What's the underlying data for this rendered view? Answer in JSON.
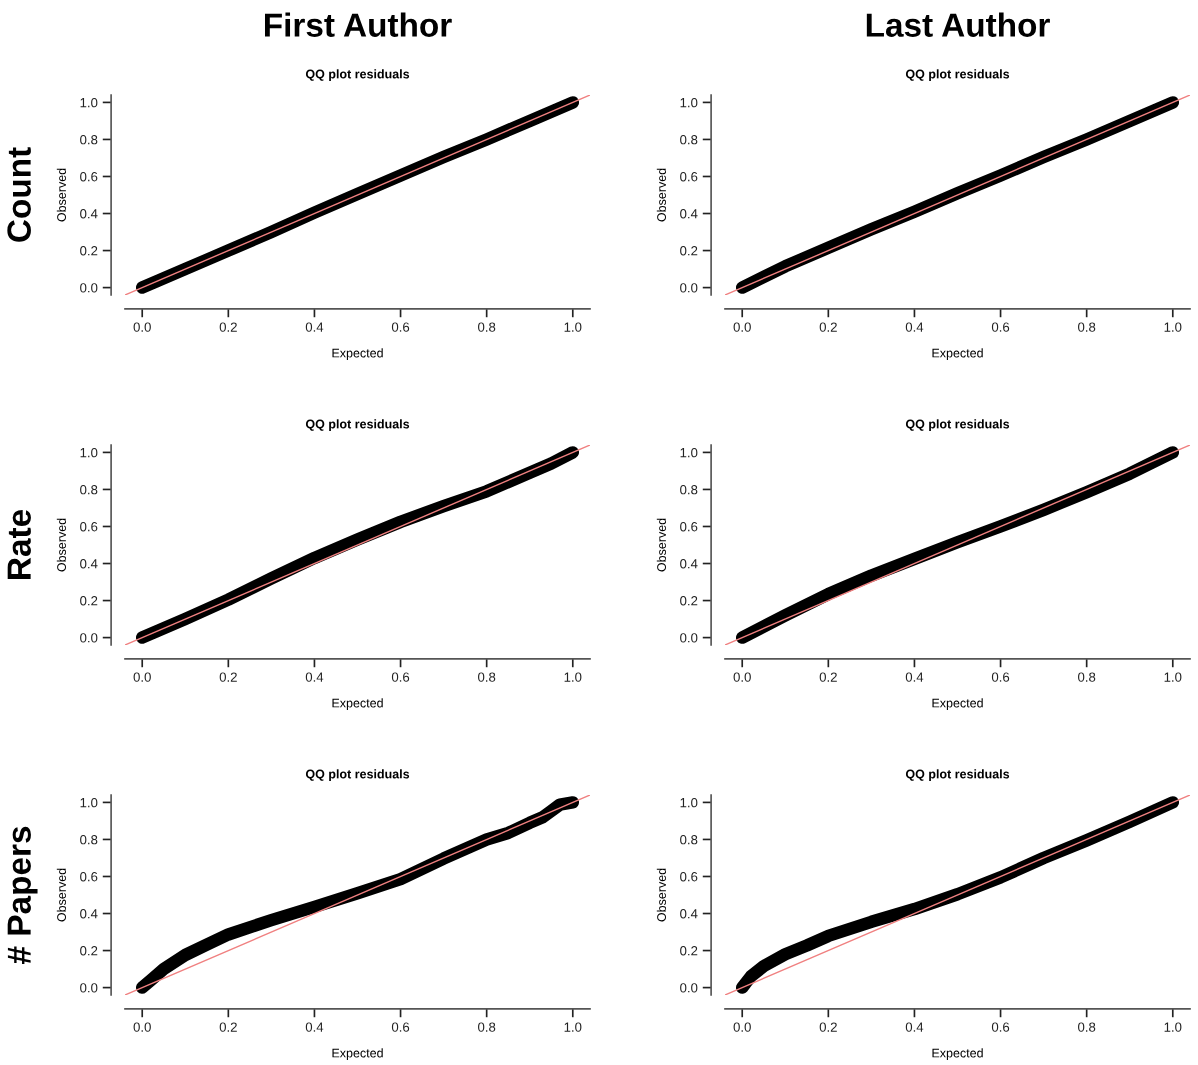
{
  "chart_data": [
    {
      "type": "line",
      "title": "QQ plot residuals",
      "xlabel": "Expected",
      "ylabel": "Observed",
      "annotations": [
        "First Author",
        "Count"
      ],
      "xlim": [
        -0.04,
        1.04
      ],
      "ylim": [
        -0.04,
        1.04
      ],
      "xticks": [
        {
          "value": 0,
          "label": "0.0"
        },
        {
          "value": 0.2,
          "label": "0.2"
        },
        {
          "value": 0.4,
          "label": "0.4"
        },
        {
          "value": 0.6,
          "label": "0.6"
        },
        {
          "value": 0.8,
          "label": "0.8"
        },
        {
          "value": 1,
          "label": "1.0"
        }
      ],
      "yticks": [
        {
          "value": 0,
          "label": "0.0"
        },
        {
          "value": 0.2,
          "label": "0.2"
        },
        {
          "value": 0.4,
          "label": "0.4"
        },
        {
          "value": 0.6,
          "label": "0.6"
        },
        {
          "value": 0.8,
          "label": "0.8"
        },
        {
          "value": 1,
          "label": "1.0"
        }
      ],
      "grid": false,
      "legend": false,
      "series": [
        {
          "color": "#000000",
          "x": [
            0,
            0.1,
            0.2,
            0.3,
            0.4,
            0.5,
            0.6,
            0.7,
            0.8,
            0.9,
            1
          ],
          "values": [
            0,
            0.1,
            0.2,
            0.3,
            0.405,
            0.505,
            0.605,
            0.705,
            0.8,
            0.9,
            1
          ]
        },
        {
          "color": "#f08080",
          "x": [
            -0.04,
            1.04
          ],
          "values": [
            -0.04,
            1.04
          ]
        }
      ]
    },
    {
      "type": "line",
      "title": "QQ plot residuals",
      "xlabel": "Expected",
      "ylabel": "Observed",
      "annotations": [
        "Last Author"
      ],
      "xlim": [
        -0.04,
        1.04
      ],
      "ylim": [
        -0.04,
        1.04
      ],
      "xticks": [
        {
          "value": 0,
          "label": "0.0"
        },
        {
          "value": 0.2,
          "label": "0.2"
        },
        {
          "value": 0.4,
          "label": "0.4"
        },
        {
          "value": 0.6,
          "label": "0.6"
        },
        {
          "value": 0.8,
          "label": "0.8"
        },
        {
          "value": 1,
          "label": "1.0"
        }
      ],
      "yticks": [
        {
          "value": 0,
          "label": "0.0"
        },
        {
          "value": 0.2,
          "label": "0.2"
        },
        {
          "value": 0.4,
          "label": "0.4"
        },
        {
          "value": 0.6,
          "label": "0.6"
        },
        {
          "value": 0.8,
          "label": "0.8"
        },
        {
          "value": 1,
          "label": "1.0"
        }
      ],
      "grid": false,
      "legend": false,
      "series": [
        {
          "color": "#000000",
          "x": [
            0,
            0.1,
            0.2,
            0.3,
            0.4,
            0.5,
            0.6,
            0.7,
            0.8,
            0.9,
            1
          ],
          "values": [
            0,
            0.115,
            0.215,
            0.315,
            0.41,
            0.51,
            0.605,
            0.705,
            0.8,
            0.9,
            1
          ]
        },
        {
          "color": "#f08080",
          "x": [
            -0.04,
            1.04
          ],
          "values": [
            -0.04,
            1.04
          ]
        }
      ]
    },
    {
      "type": "line",
      "title": "QQ plot residuals",
      "xlabel": "Expected",
      "ylabel": "Observed",
      "annotations": [
        "Rate"
      ],
      "xlim": [
        -0.04,
        1.04
      ],
      "ylim": [
        -0.04,
        1.04
      ],
      "xticks": [
        {
          "value": 0,
          "label": "0.0"
        },
        {
          "value": 0.2,
          "label": "0.2"
        },
        {
          "value": 0.4,
          "label": "0.4"
        },
        {
          "value": 0.6,
          "label": "0.6"
        },
        {
          "value": 0.8,
          "label": "0.8"
        },
        {
          "value": 1,
          "label": "1.0"
        }
      ],
      "yticks": [
        {
          "value": 0,
          "label": "0.0"
        },
        {
          "value": 0.2,
          "label": "0.2"
        },
        {
          "value": 0.4,
          "label": "0.4"
        },
        {
          "value": 0.6,
          "label": "0.6"
        },
        {
          "value": 0.8,
          "label": "0.8"
        },
        {
          "value": 1,
          "label": "1.0"
        }
      ],
      "grid": false,
      "legend": false,
      "series": [
        {
          "color": "#000000",
          "x": [
            0,
            0.1,
            0.2,
            0.3,
            0.4,
            0.5,
            0.6,
            0.7,
            0.8,
            0.9,
            0.95,
            1
          ],
          "values": [
            0,
            0.1,
            0.205,
            0.32,
            0.43,
            0.53,
            0.625,
            0.71,
            0.79,
            0.89,
            0.94,
            1
          ]
        },
        {
          "color": "#f08080",
          "x": [
            -0.04,
            1.04
          ],
          "values": [
            -0.04,
            1.04
          ]
        }
      ]
    },
    {
      "type": "line",
      "title": "QQ plot residuals",
      "xlabel": "Expected",
      "ylabel": "Observed",
      "xlim": [
        -0.04,
        1.04
      ],
      "ylim": [
        -0.04,
        1.04
      ],
      "xticks": [
        {
          "value": 0,
          "label": "0.0"
        },
        {
          "value": 0.2,
          "label": "0.2"
        },
        {
          "value": 0.4,
          "label": "0.4"
        },
        {
          "value": 0.6,
          "label": "0.6"
        },
        {
          "value": 0.8,
          "label": "0.8"
        },
        {
          "value": 1,
          "label": "1.0"
        }
      ],
      "yticks": [
        {
          "value": 0,
          "label": "0.0"
        },
        {
          "value": 0.2,
          "label": "0.2"
        },
        {
          "value": 0.4,
          "label": "0.4"
        },
        {
          "value": 0.6,
          "label": "0.6"
        },
        {
          "value": 0.8,
          "label": "0.8"
        },
        {
          "value": 1,
          "label": "1.0"
        }
      ],
      "grid": false,
      "legend": false,
      "series": [
        {
          "color": "#000000",
          "x": [
            0,
            0.1,
            0.2,
            0.3,
            0.4,
            0.5,
            0.6,
            0.7,
            0.8,
            0.9,
            1
          ],
          "values": [
            0,
            0.12,
            0.235,
            0.335,
            0.425,
            0.515,
            0.6,
            0.69,
            0.785,
            0.885,
            1
          ]
        },
        {
          "color": "#f08080",
          "x": [
            -0.04,
            1.04
          ],
          "values": [
            -0.04,
            1.04
          ]
        }
      ]
    },
    {
      "type": "line",
      "title": "QQ plot residuals",
      "xlabel": "Expected",
      "ylabel": "Observed",
      "annotations": [
        "# Papers"
      ],
      "xlim": [
        -0.04,
        1.04
      ],
      "ylim": [
        -0.04,
        1.04
      ],
      "xticks": [
        {
          "value": 0,
          "label": "0.0"
        },
        {
          "value": 0.2,
          "label": "0.2"
        },
        {
          "value": 0.4,
          "label": "0.4"
        },
        {
          "value": 0.6,
          "label": "0.6"
        },
        {
          "value": 0.8,
          "label": "0.8"
        },
        {
          "value": 1,
          "label": "1.0"
        }
      ],
      "yticks": [
        {
          "value": 0,
          "label": "0.0"
        },
        {
          "value": 0.2,
          "label": "0.2"
        },
        {
          "value": 0.4,
          "label": "0.4"
        },
        {
          "value": 0.6,
          "label": "0.6"
        },
        {
          "value": 0.8,
          "label": "0.8"
        },
        {
          "value": 1,
          "label": "1.0"
        }
      ],
      "grid": false,
      "legend": false,
      "series": [
        {
          "color": "#000000",
          "x": [
            0,
            0.02,
            0.05,
            0.1,
            0.15,
            0.2,
            0.3,
            0.4,
            0.5,
            0.6,
            0.7,
            0.8,
            0.85,
            0.9,
            0.93,
            0.95,
            0.97,
            1
          ],
          "values": [
            0,
            0.04,
            0.1,
            0.176,
            0.232,
            0.287,
            0.364,
            0.436,
            0.509,
            0.586,
            0.697,
            0.8,
            0.835,
            0.89,
            0.92,
            0.954,
            0.988,
            1
          ]
        },
        {
          "color": "#f08080",
          "x": [
            -0.04,
            1.04
          ],
          "values": [
            -0.04,
            1.04
          ]
        }
      ]
    },
    {
      "type": "line",
      "title": "QQ plot residuals",
      "xlabel": "Expected",
      "ylabel": "Observed",
      "xlim": [
        -0.04,
        1.04
      ],
      "ylim": [
        -0.04,
        1.04
      ],
      "xticks": [
        {
          "value": 0,
          "label": "0.0"
        },
        {
          "value": 0.2,
          "label": "0.2"
        },
        {
          "value": 0.4,
          "label": "0.4"
        },
        {
          "value": 0.6,
          "label": "0.6"
        },
        {
          "value": 0.8,
          "label": "0.8"
        },
        {
          "value": 1,
          "label": "1.0"
        }
      ],
      "yticks": [
        {
          "value": 0,
          "label": "0.0"
        },
        {
          "value": 0.2,
          "label": "0.2"
        },
        {
          "value": 0.4,
          "label": "0.4"
        },
        {
          "value": 0.6,
          "label": "0.6"
        },
        {
          "value": 0.8,
          "label": "0.8"
        },
        {
          "value": 1,
          "label": "1.0"
        }
      ],
      "grid": false,
      "legend": false,
      "series": [
        {
          "color": "#000000",
          "x": [
            0,
            0.01,
            0.02,
            0.05,
            0.1,
            0.15,
            0.2,
            0.3,
            0.4,
            0.5,
            0.6,
            0.7,
            0.8,
            0.9,
            1
          ],
          "values": [
            0,
            0.03,
            0.06,
            0.116,
            0.18,
            0.227,
            0.279,
            0.355,
            0.424,
            0.504,
            0.595,
            0.7,
            0.795,
            0.895,
            1
          ]
        },
        {
          "color": "#f08080",
          "x": [
            -0.04,
            1.04
          ],
          "values": [
            -0.04,
            1.04
          ]
        }
      ]
    }
  ]
}
